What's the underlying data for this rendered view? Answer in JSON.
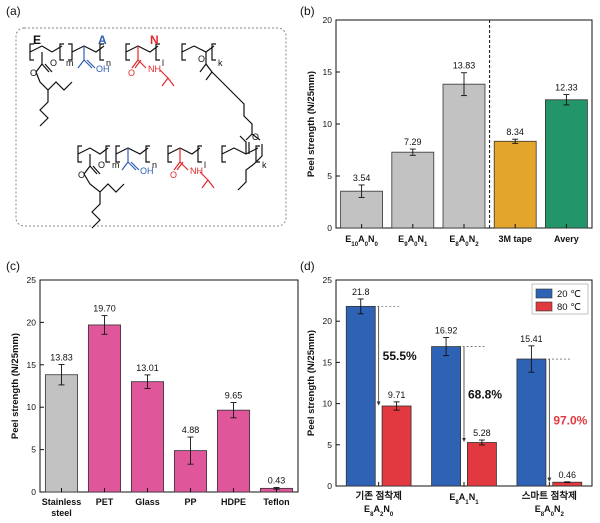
{
  "colors": {
    "gray": "#c2c2c2",
    "pink": "#e0569b",
    "orange": "#e3a52b",
    "green": "#22966a",
    "blue": "#2e62b5",
    "red": "#e2383f",
    "chem_blue": "#2f5fb3",
    "chem_red": "#e3282d"
  },
  "panel_a": {
    "label": "(a)",
    "monomer_e": "E",
    "monomer_a": "A",
    "monomer_n": "N",
    "sub_m": "m",
    "sub_n": "n",
    "sub_l": "l",
    "sub_k": "k",
    "oh": "OH",
    "nh": "NH",
    "o": "O"
  },
  "chart_data": [
    {
      "panel": "(b)",
      "type": "bar",
      "ylabel": "Peel strength (N/25mm)",
      "xlabel": "",
      "ylim": [
        0,
        20
      ],
      "yticks": [
        0,
        5,
        10,
        15,
        20
      ],
      "categories": [
        {
          "base": "E",
          "subs": [
            [
              "10",
              "A"
            ],
            [
              "0",
              "N"
            ],
            [
              "0",
              ""
            ]
          ]
        },
        {
          "base": "E",
          "subs": [
            [
              "9",
              "A"
            ],
            [
              "0",
              "N"
            ],
            [
              "1",
              ""
            ]
          ]
        },
        {
          "base": "E",
          "subs": [
            [
              "8",
              "A"
            ],
            [
              "0",
              "N"
            ],
            [
              "2",
              ""
            ]
          ]
        },
        {
          "base": "3M tape",
          "subs": []
        },
        {
          "base": "Avery",
          "subs": []
        }
      ],
      "values": [
        3.54,
        7.29,
        13.83,
        8.34,
        12.33
      ],
      "errors": [
        0.6,
        0.3,
        1.1,
        0.2,
        0.5
      ],
      "value_labels": [
        "3.54",
        "7.29",
        "13.83",
        "8.34",
        "12.33"
      ],
      "bar_colors": [
        "gray",
        "gray",
        "gray",
        "orange",
        "green"
      ],
      "divider_after_index": 2
    },
    {
      "panel": "(c)",
      "type": "bar",
      "ylabel": "Peel strength (N/25mm)",
      "xlabel": "",
      "ylim": [
        0,
        25
      ],
      "yticks": [
        0,
        5,
        10,
        15,
        20,
        25
      ],
      "categories": [
        {
          "base": "Stainless",
          "line2": "steel"
        },
        {
          "base": "PET"
        },
        {
          "base": "Glass"
        },
        {
          "base": "PP"
        },
        {
          "base": "HDPE"
        },
        {
          "base": "Teflon"
        }
      ],
      "values": [
        13.83,
        19.7,
        13.01,
        4.88,
        9.65,
        0.43
      ],
      "errors": [
        1.2,
        1.1,
        0.8,
        1.6,
        0.9,
        0.1
      ],
      "value_labels": [
        "13.83",
        "19.70",
        "13.01",
        "4.88",
        "9.65",
        "0.43"
      ],
      "bar_colors": [
        "gray",
        "pink",
        "pink",
        "pink",
        "pink",
        "pink"
      ]
    },
    {
      "panel": "(d)",
      "type": "grouped-bar",
      "ylabel": "Peel strength (N/25mm)",
      "xlabel": "",
      "ylim": [
        0,
        25
      ],
      "yticks": [
        0,
        5,
        10,
        15,
        20,
        25
      ],
      "categories": [
        {
          "top": "기존 점착제",
          "base": "E",
          "subs": [
            [
              "8",
              "A"
            ],
            [
              "2",
              "N"
            ],
            [
              "0",
              ""
            ]
          ]
        },
        {
          "top": "",
          "base": "E",
          "subs": [
            [
              "8",
              "A"
            ],
            [
              "1",
              "N"
            ],
            [
              "1",
              ""
            ]
          ]
        },
        {
          "top": "스마트 점착제",
          "base": "E",
          "subs": [
            [
              "8",
              "A"
            ],
            [
              "0",
              "N"
            ],
            [
              "2",
              ""
            ]
          ]
        }
      ],
      "series": [
        {
          "name": "20 ℃",
          "color": "blue",
          "values": [
            21.8,
            16.92,
            15.41
          ],
          "errors": [
            0.9,
            1.1,
            1.6
          ],
          "value_labels": [
            "21.8",
            "16.92",
            "15.41"
          ]
        },
        {
          "name": "80 ℃",
          "color": "red",
          "values": [
            9.71,
            5.28,
            0.46
          ],
          "errors": [
            0.5,
            0.3,
            0.05
          ],
          "value_labels": [
            "9.71",
            "5.28",
            "0.46"
          ]
        }
      ],
      "reductions": [
        "55.5%",
        "68.8%",
        "97.0%"
      ],
      "reduction_colors": [
        "#111111",
        "#111111",
        "red"
      ],
      "legend_position": "top-right"
    }
  ]
}
